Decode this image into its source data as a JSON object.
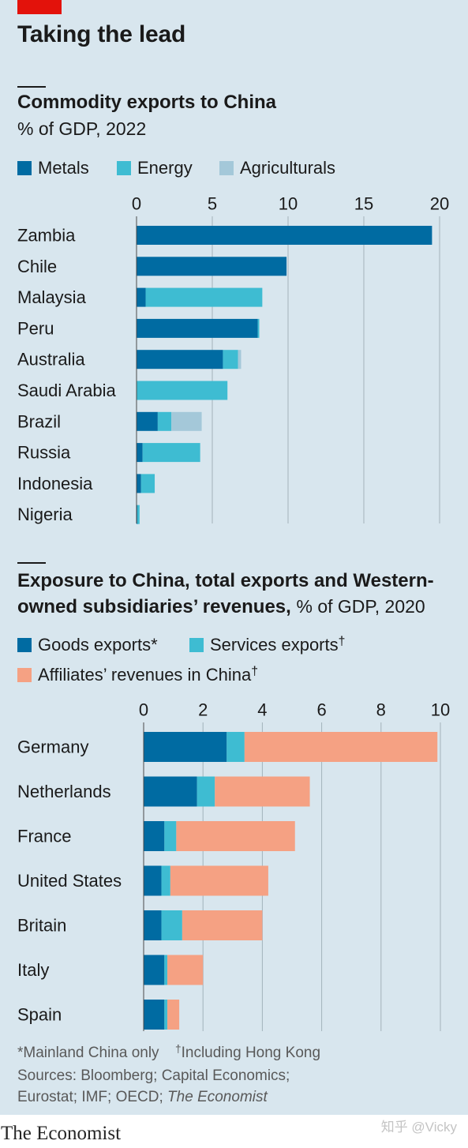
{
  "header": {
    "title": "Taking the lead"
  },
  "brand": {
    "name": "The Economist",
    "tag_color": "#e3120b"
  },
  "colors": {
    "background": "#d8e6ee",
    "band": "#ffffff",
    "text": "#1a1a1a",
    "note_text": "#595959"
  },
  "chart_data": [
    {
      "type": "bar",
      "orientation": "horizontal",
      "stacked": true,
      "title": "Commodity exports to China",
      "subtitle": "% of GDP, 2022",
      "categories": [
        "Zambia",
        "Chile",
        "Malaysia",
        "Peru",
        "Australia",
        "Saudi Arabia",
        "Brazil",
        "Russia",
        "Indonesia",
        "Nigeria"
      ],
      "series": [
        {
          "name": "Metals",
          "color": "#006ba2",
          "values": [
            19.5,
            9.9,
            0.6,
            8.0,
            5.7,
            0,
            1.4,
            0.4,
            0.3,
            0.05
          ]
        },
        {
          "name": "Energy",
          "color": "#3ebcd2",
          "values": [
            0,
            0,
            7.7,
            0.1,
            1.0,
            6.0,
            0.9,
            3.8,
            0.9,
            0.15
          ]
        },
        {
          "name": "Agriculturals",
          "color": "#a4c8d9",
          "values": [
            0,
            0,
            0,
            0,
            0.2,
            0,
            2.0,
            0,
            0,
            0
          ]
        }
      ],
      "xlim": [
        0,
        20
      ],
      "xticks": [
        0,
        5,
        10,
        15,
        20
      ],
      "grid": true,
      "legend": "top-left"
    },
    {
      "type": "bar",
      "orientation": "horizontal",
      "stacked": true,
      "title": "Exposure to China, total exports and Western-owned subsidiaries’ revenues,",
      "subtitle": "% of GDP, 2020",
      "categories": [
        "Germany",
        "Netherlands",
        "France",
        "United States",
        "Britain",
        "Italy",
        "Spain"
      ],
      "series": [
        {
          "name": "Goods exports*",
          "color": "#006ba2",
          "values": [
            2.8,
            1.8,
            0.7,
            0.6,
            0.6,
            0.7,
            0.7
          ]
        },
        {
          "name": "Services exports†",
          "color": "#3ebcd2",
          "values": [
            0.6,
            0.6,
            0.4,
            0.3,
            0.7,
            0.1,
            0.1
          ]
        },
        {
          "name": "Affiliates’ revenues in China†",
          "color": "#f5a183",
          "values": [
            6.5,
            3.2,
            4.0,
            3.3,
            2.7,
            1.2,
            0.4
          ]
        }
      ],
      "xlim": [
        0,
        10
      ],
      "xticks": [
        0,
        2,
        4,
        6,
        8,
        10
      ],
      "grid": true,
      "legend": "top-left"
    }
  ],
  "notes": {
    "footnotes": [
      "*Mainland China only",
      "†Including Hong Kong"
    ],
    "sources": "Sources: Bloomberg; Capital Economics; Eurostat; IMF; OECD;",
    "sources_italic": "The Economist"
  },
  "watermark": "知乎 @Vicky"
}
